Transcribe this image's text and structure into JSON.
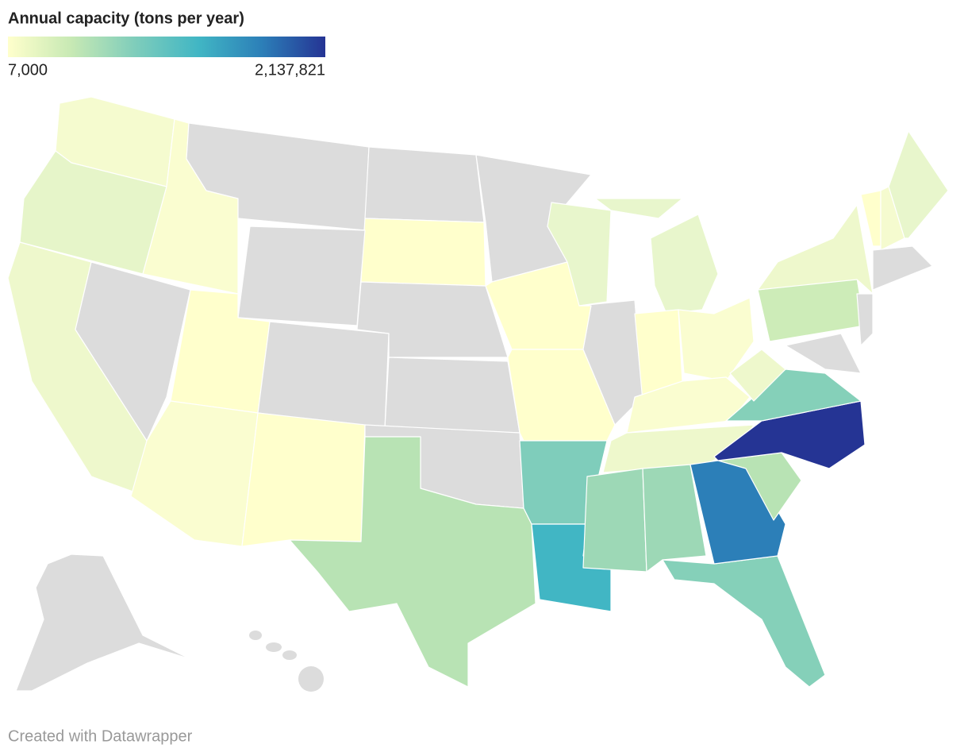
{
  "legend": {
    "title": "Annual capacity (tons per year)",
    "min": {
      "value": 7000,
      "label": "7,000"
    },
    "max": {
      "value": 2137821,
      "label": "2,137,821"
    },
    "colors": [
      "#ffffcc",
      "#c7e9b4",
      "#7fcdbb",
      "#41b6c4",
      "#2c7fb8",
      "#253494"
    ]
  },
  "footer": "Created with Datawrapper"
}
